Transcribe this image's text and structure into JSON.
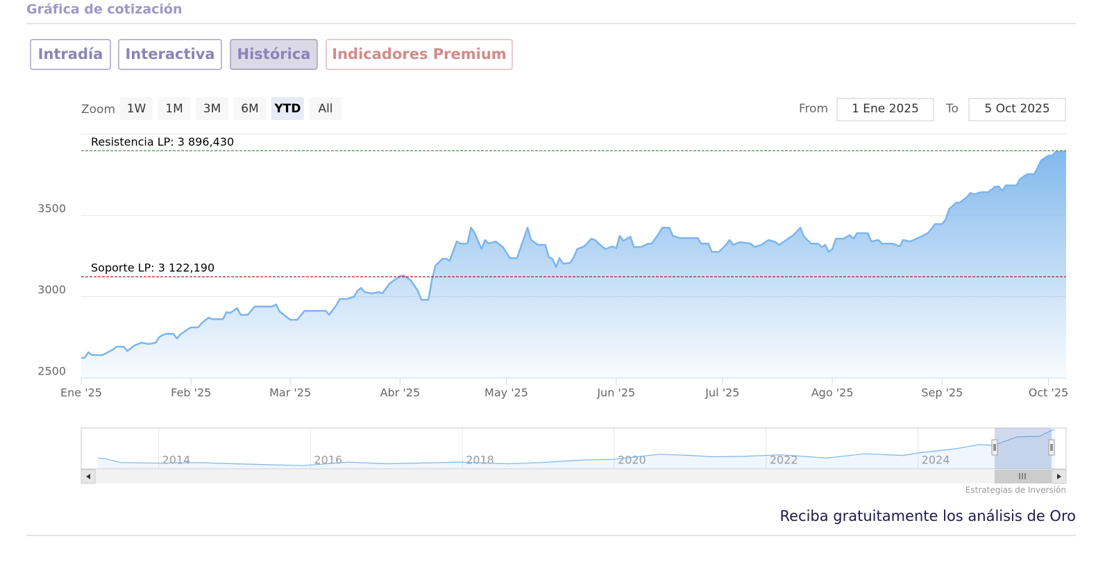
{
  "header": {
    "title": "Gráfica de cotización"
  },
  "tabs": [
    {
      "label": "Intradía"
    },
    {
      "label": "Interactiva"
    },
    {
      "label": "Histórica"
    },
    {
      "label": "Indicadores Premium",
      "color": "#d48a8a"
    }
  ],
  "selected_tab": 2,
  "range_selector": {
    "label": "Zoom",
    "buttons": [
      "1W",
      "1M",
      "3M",
      "6M",
      "YTD",
      "All"
    ],
    "selected": 4,
    "from_label": "From",
    "from": "1 Ene 2025",
    "to_label": "To",
    "to": "5 Oct 2025"
  },
  "chart_data": [
    {
      "type": "area",
      "x": [
        0,
        1,
        2,
        3,
        6,
        9,
        10,
        12,
        13,
        15,
        17,
        19,
        21,
        22,
        23,
        24,
        26,
        27,
        28,
        30,
        31,
        33,
        34,
        36,
        37,
        40,
        41,
        42,
        43,
        44,
        45,
        47,
        49,
        52,
        54,
        55,
        56,
        59,
        61,
        63,
        65,
        69,
        70,
        72,
        73,
        75,
        77,
        78,
        79,
        80,
        82,
        84,
        85,
        87,
        88,
        90,
        91,
        93,
        95,
        96,
        98,
        99,
        100,
        102,
        103,
        104,
        106,
        107,
        109,
        110,
        111,
        113,
        114,
        115,
        117,
        119,
        121,
        123,
        126,
        127,
        129,
        131,
        132,
        133,
        134,
        135,
        136,
        138,
        139,
        140,
        142,
        144,
        145,
        147,
        148,
        150,
        151,
        152,
        153,
        155,
        156,
        158,
        160,
        161,
        163,
        164,
        166,
        167,
        169,
        171,
        174,
        175,
        177,
        178,
        180,
        182,
        183,
        184,
        186,
        189,
        190,
        192,
        194,
        196,
        197,
        199,
        201,
        203,
        204,
        206,
        208,
        209,
        210,
        211,
        212,
        213,
        215,
        217,
        218,
        219,
        222,
        223,
        225,
        226,
        229,
        231,
        232,
        234,
        237,
        239,
        241,
        243,
        244,
        245,
        247,
        248,
        250,
        251,
        252,
        254,
        256,
        258,
        259,
        260,
        261,
        264,
        265,
        267,
        269,
        270,
        271,
        273,
        274,
        275,
        276,
        278
      ],
      "series": [
        {
          "color": "#7cb5ec",
          "values": [
            2624,
            2624,
            2658,
            2641,
            2641,
            2675,
            2692,
            2692,
            2666,
            2700,
            2717,
            2709,
            2717,
            2751,
            2764,
            2772,
            2772,
            2743,
            2768,
            2798,
            2811,
            2811,
            2837,
            2871,
            2862,
            2862,
            2905,
            2900,
            2913,
            2930,
            2888,
            2888,
            2939,
            2939,
            2939,
            2952,
            2909,
            2858,
            2858,
            2913,
            2913,
            2913,
            2888,
            2947,
            2986,
            2986,
            3000,
            3037,
            3054,
            3028,
            3020,
            3028,
            3020,
            3079,
            3096,
            3126,
            3130,
            3101,
            3037,
            2981,
            2981,
            3105,
            3190,
            3233,
            3233,
            3220,
            3339,
            3326,
            3326,
            3424,
            3394,
            3292,
            3348,
            3326,
            3339,
            3305,
            3237,
            3237,
            3424,
            3348,
            3318,
            3318,
            3241,
            3233,
            3182,
            3237,
            3203,
            3207,
            3241,
            3292,
            3309,
            3356,
            3348,
            3309,
            3292,
            3309,
            3297,
            3373,
            3343,
            3369,
            3305,
            3305,
            3326,
            3326,
            3386,
            3424,
            3424,
            3373,
            3360,
            3360,
            3360,
            3326,
            3326,
            3275,
            3275,
            3318,
            3348,
            3318,
            3335,
            3326,
            3305,
            3318,
            3348,
            3335,
            3318,
            3348,
            3378,
            3424,
            3369,
            3326,
            3326,
            3305,
            3318,
            3275,
            3292,
            3356,
            3356,
            3378,
            3356,
            3390,
            3390,
            3339,
            3348,
            3326,
            3326,
            3309,
            3348,
            3339,
            3369,
            3390,
            3446,
            3446,
            3475,
            3539,
            3578,
            3578,
            3612,
            3637,
            3629,
            3642,
            3642,
            3676,
            3676,
            3650,
            3684,
            3684,
            3723,
            3753,
            3753,
            3795,
            3838,
            3867,
            3867,
            3889,
            3889,
            3893
          ]
        }
      ],
      "xlim": [
        0,
        278
      ],
      "xticks": [
        {
          "value": 0,
          "label": "Ene '25"
        },
        {
          "value": 31,
          "label": "Feb '25"
        },
        {
          "value": 59,
          "label": "Mar '25"
        },
        {
          "value": 90,
          "label": "Abr '25"
        },
        {
          "value": 120,
          "label": "May '25"
        },
        {
          "value": 151,
          "label": "Jun '25"
        },
        {
          "value": 181,
          "label": "Jul '25"
        },
        {
          "value": 212,
          "label": "Ago '25"
        },
        {
          "value": 243,
          "label": "Sep '25"
        },
        {
          "value": 273,
          "label": "Oct '25"
        }
      ],
      "ylim": [
        2500,
        4000
      ],
      "yticks": [
        2500,
        3000,
        3500
      ],
      "grid": true,
      "plot_lines": [
        {
          "label": "Resistencia LP: 3 896,430",
          "value": 3896.43,
          "color": "#2e8b2e"
        },
        {
          "label": "Soporte LP: 3 122,190",
          "value": 3122.19,
          "color": "#a0202a"
        }
      ]
    },
    {
      "type": "line",
      "x": [
        2013.2,
        2013.3,
        2013.5,
        2014,
        2014.5,
        2015,
        2015.9,
        2016.5,
        2017,
        2017.6,
        2018,
        2018.6,
        2019,
        2019.6,
        2020,
        2020.6,
        2021,
        2021.3,
        2021.7,
        2022.2,
        2022.8,
        2023.3,
        2023.8,
        2024,
        2024.5,
        2024.8,
        2025,
        2025.3,
        2025.6,
        2025.75,
        2025.8
      ],
      "series": [
        {
          "color": "#7cb5ec",
          "values": [
            1650,
            1600,
            1300,
            1250,
            1300,
            1200,
            1060,
            1330,
            1200,
            1280,
            1330,
            1200,
            1290,
            1500,
            1550,
            1950,
            1850,
            1750,
            1780,
            1900,
            1650,
            1980,
            1850,
            2050,
            2380,
            2700,
            2650,
            3300,
            3350,
            3800,
            3890
          ]
        }
      ],
      "xlim": [
        2012.98,
        2025.95
      ],
      "xticks": [
        2014,
        2016,
        2018,
        2020,
        2022,
        2024
      ],
      "ylim": [
        800,
        4000
      ],
      "grid": true
    }
  ],
  "credits": "Estrategias de Inversión",
  "footer": "Reciba gratuitamente los análisis de Oro"
}
